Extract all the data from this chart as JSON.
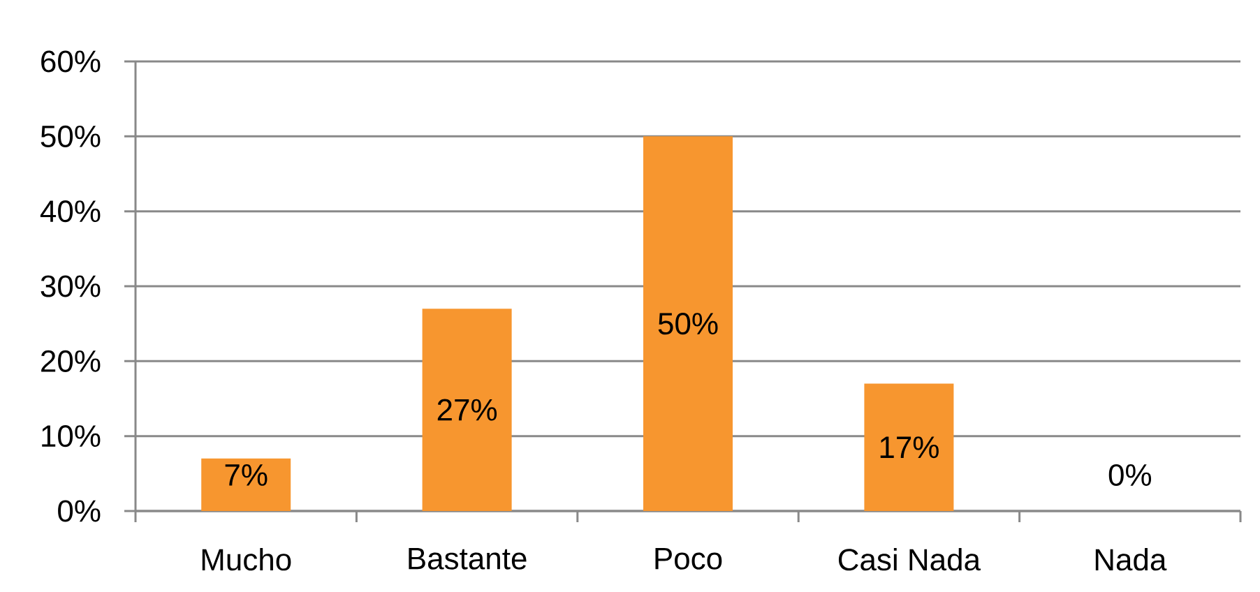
{
  "chart_data": {
    "type": "bar",
    "categories": [
      "Mucho",
      "Bastante",
      "Poco",
      "Casi Nada",
      "Nada"
    ],
    "values": [
      7,
      27,
      50,
      17,
      0
    ],
    "value_labels": [
      "7%",
      "27%",
      "50%",
      "17%",
      "0%"
    ],
    "color": "#f7962f",
    "ylim": [
      0,
      60
    ],
    "yticks": [
      {
        "value": 0,
        "label": "0%"
      },
      {
        "value": 10,
        "label": "10%"
      },
      {
        "value": 20,
        "label": "20%"
      },
      {
        "value": 30,
        "label": "30%"
      },
      {
        "value": 40,
        "label": "40%"
      },
      {
        "value": 50,
        "label": "50%"
      },
      {
        "value": 60,
        "label": "60%"
      }
    ],
    "grid": "y"
  }
}
